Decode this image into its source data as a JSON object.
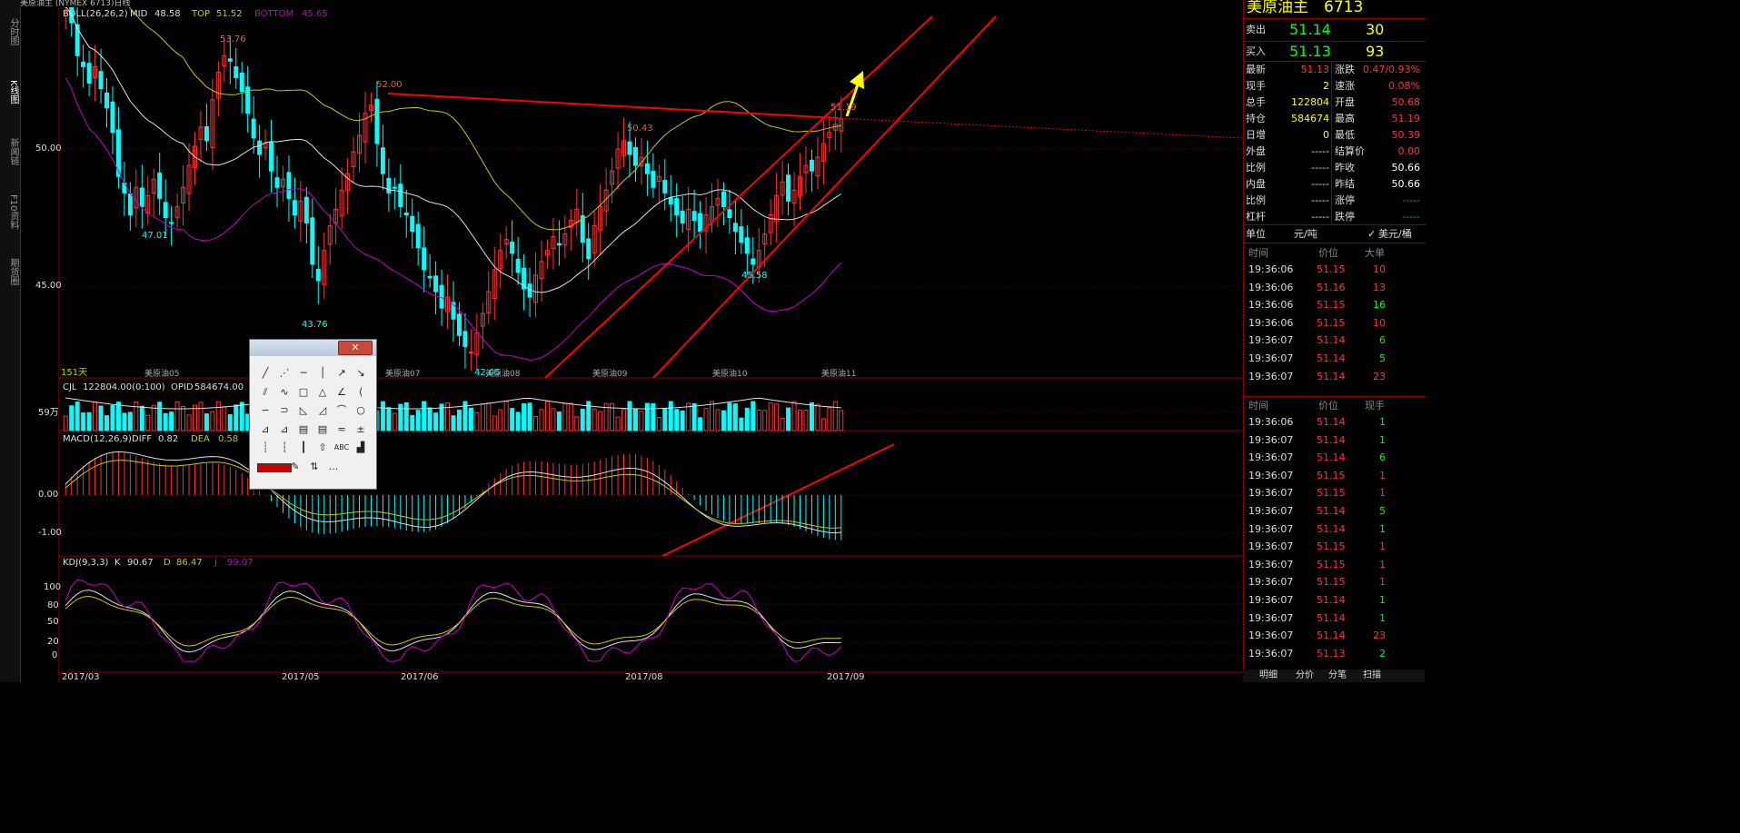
{
  "left_tabs": [
    "分时图",
    "K线图",
    "新闻链",
    "F10资料",
    "期货圈"
  ],
  "title": "美原油主 (NYMEX 6713)日线",
  "indicators": {
    "boll": {
      "label": "BOLL(26,26,2)",
      "mid_label": "MID",
      "mid": "48.58",
      "top_label": "TOP",
      "top": "51.52",
      "bottom_label": "BOTTOM",
      "bottom": "45.65"
    },
    "cjl": {
      "label": "CJL",
      "value": "122804.00(0:100)",
      "opid_label": "OPID",
      "opid": "584674.00"
    },
    "macd": {
      "label": "MACD(12,26,9)",
      "diff_label": "DIFF",
      "diff": "0.82",
      "dea_label": "DEA",
      "dea": "0.58"
    },
    "kdj": {
      "label": "KDJ(9,3,3)",
      "k_label": "K",
      "k": "90.67",
      "d_label": "D",
      "d": "86.47",
      "j_label": "J",
      "j": "99.07"
    }
  },
  "price_axis": [
    "50.00",
    "45.00"
  ],
  "volume_axis": "59万",
  "macd_axis": [
    "0.00",
    "-1.00"
  ],
  "kdj_axis": [
    "100",
    "80",
    "50",
    "20",
    "0"
  ],
  "date_axis": [
    "2017/03",
    "2017/05",
    "2017/06",
    "2017/08",
    "2017/09"
  ],
  "contract_labels": [
    "美原油05",
    "美原油07",
    "美原油08",
    "美原油09",
    "美原油10",
    "美原油11"
  ],
  "day_count": "151天",
  "price_annotations": [
    "53.76",
    "52.00",
    "50.43",
    "47.01",
    "43.76",
    "42.05",
    "45.58",
    "51.19"
  ],
  "colors": {
    "up": "#ff3232",
    "down": "#00ffff",
    "boll_top": "#c8c800",
    "boll_bottom": "#c800c8",
    "mid": "#e0e0e0",
    "trend": "#ff0000",
    "arrow": "#ffff00"
  },
  "quote": {
    "name": "美原油主",
    "code": "6713",
    "sell_label": "卖出",
    "sell_price": "51.14",
    "sell_qty": "30",
    "buy_label": "买入",
    "buy_price": "51.13",
    "buy_qty": "93",
    "rows": [
      {
        "l1": "最新",
        "v1": "51.13",
        "l2": "涨跌",
        "v2": "0.47/0.93%"
      },
      {
        "l1": "现手",
        "v1": "2",
        "l2": "速涨",
        "v2": "0.08%"
      },
      {
        "l1": "总手",
        "v1": "122804",
        "l2": "开盘",
        "v2": "50.68"
      },
      {
        "l1": "持仓",
        "v1": "584674",
        "l2": "最高",
        "v2": "51.19"
      },
      {
        "l1": "日增",
        "v1": "0",
        "l2": "最低",
        "v2": "50.39"
      },
      {
        "l1": "外盘",
        "v1": "-----",
        "l2": "结算价",
        "v2": "0.00"
      },
      {
        "l1": "比例",
        "v1": "-----",
        "l2": "昨收",
        "v2": "50.66"
      },
      {
        "l1": "内盘",
        "v1": "-----",
        "l2": "昨结",
        "v2": "50.66"
      },
      {
        "l1": "比例",
        "v1": "-----",
        "l2": "涨停",
        "v2": "-----"
      },
      {
        "l1": "杠杆",
        "v1": "-----",
        "l2": "跌停",
        "v2": "-----"
      }
    ],
    "unit_label": "单位",
    "unit_value": "元/吨",
    "unit_alt": "美元/桶"
  },
  "ticks_big": {
    "headers": [
      "时间",
      "价位",
      "大单"
    ],
    "rows": [
      [
        "19:36:06",
        "51.15",
        "10"
      ],
      [
        "19:36:06",
        "51.16",
        "13"
      ],
      [
        "19:36:06",
        "51.15",
        "16"
      ],
      [
        "19:36:06",
        "51.15",
        "10"
      ],
      [
        "19:36:07",
        "51.14",
        "6"
      ],
      [
        "19:36:07",
        "51.14",
        "5"
      ],
      [
        "19:36:07",
        "51.14",
        "23"
      ]
    ]
  },
  "ticks": {
    "headers": [
      "时间",
      "价位",
      "现手"
    ],
    "rows": [
      [
        "19:36:06",
        "51.14",
        "1"
      ],
      [
        "19:36:07",
        "51.14",
        "1"
      ],
      [
        "19:36:07",
        "51.14",
        "6"
      ],
      [
        "19:36:07",
        "51.15",
        "1"
      ],
      [
        "19:36:07",
        "51.15",
        "1"
      ],
      [
        "19:36:07",
        "51.14",
        "5"
      ],
      [
        "19:36:07",
        "51.14",
        "1"
      ],
      [
        "19:36:07",
        "51.15",
        "1"
      ],
      [
        "19:36:07",
        "51.15",
        "1"
      ],
      [
        "19:36:07",
        "51.15",
        "1"
      ],
      [
        "19:36:07",
        "51.14",
        "1"
      ],
      [
        "19:36:07",
        "51.14",
        "1"
      ],
      [
        "19:36:07",
        "51.14",
        "23"
      ],
      [
        "19:36:07",
        "51.13",
        "2"
      ]
    ]
  },
  "bottom_tabs": [
    "明细",
    "分价",
    "分笔",
    "扫描"
  ],
  "toolbox": {
    "close": "✕",
    "text_tool": "ABC",
    "more": "..."
  }
}
